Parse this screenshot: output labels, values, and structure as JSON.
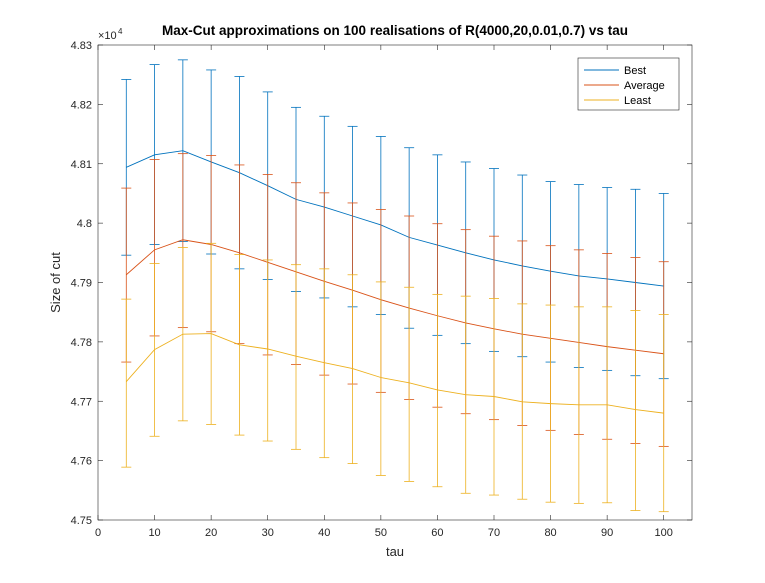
{
  "chart_data": {
    "type": "line",
    "title": "Max-Cut approximations on 100 realisations of R(4000,20,0.01,0.7) vs tau",
    "xlabel": "tau",
    "ylabel": "Size of cut",
    "xlim": [
      0,
      105
    ],
    "ylim": [
      47500,
      48300
    ],
    "y_exponent_label": "×10",
    "y_exponent_power": "4",
    "x_ticks": [
      0,
      10,
      20,
      30,
      40,
      50,
      60,
      70,
      80,
      90,
      100
    ],
    "x_tick_labels": [
      "0",
      "10",
      "20",
      "30",
      "40",
      "50",
      "60",
      "70",
      "80",
      "90",
      "100"
    ],
    "y_ticks": [
      47500,
      47600,
      47700,
      47800,
      47900,
      48000,
      48100,
      48200,
      48300
    ],
    "y_tick_labels": [
      "4.75",
      "4.76",
      "4.77",
      "4.78",
      "4.79",
      "4.8",
      "4.81",
      "4.82",
      "4.83"
    ],
    "legend_position": "top-right",
    "x": [
      5,
      10,
      15,
      20,
      25,
      30,
      35,
      40,
      45,
      50,
      55,
      60,
      65,
      70,
      75,
      80,
      85,
      90,
      95,
      100
    ],
    "series": [
      {
        "name": "Best",
        "color": "#0072BD",
        "values": [
          48094,
          48115,
          48122,
          48103,
          48085,
          48063,
          48040,
          48027,
          48012,
          47997,
          47976,
          47963,
          47950,
          47938,
          47928,
          47919,
          47911,
          47906,
          47900,
          47894
        ],
        "upper": [
          48242,
          48267,
          48275,
          48258,
          48247,
          48221,
          48195,
          48180,
          48163,
          48146,
          48127,
          48115,
          48103,
          48092,
          48081,
          48070,
          48065,
          48060,
          48057,
          48050
        ],
        "lower": [
          47946,
          47964,
          47969,
          47948,
          47923,
          47905,
          47885,
          47874,
          47859,
          47846,
          47823,
          47811,
          47797,
          47784,
          47775,
          47766,
          47757,
          47752,
          47743,
          47738
        ]
      },
      {
        "name": "Average",
        "color": "#D95319",
        "values": [
          47913,
          47955,
          47972,
          47964,
          47950,
          47934,
          47918,
          47902,
          47887,
          47871,
          47857,
          47844,
          47832,
          47822,
          47813,
          47806,
          47799,
          47792,
          47786,
          47780
        ],
        "upper": [
          48059,
          48107,
          48117,
          48114,
          48098,
          48082,
          48068,
          48051,
          48034,
          48023,
          48012,
          47999,
          47989,
          47978,
          47970,
          47962,
          47955,
          47949,
          47942,
          47935
        ],
        "lower": [
          47766,
          47810,
          47824,
          47817,
          47797,
          47778,
          47762,
          47744,
          47729,
          47715,
          47703,
          47690,
          47679,
          47669,
          47659,
          47651,
          47644,
          47636,
          47629,
          47624
        ]
      },
      {
        "name": "Least",
        "color": "#EDB120",
        "values": [
          47733,
          47787,
          47813,
          47814,
          47795,
          47788,
          47776,
          47765,
          47755,
          47740,
          47731,
          47719,
          47711,
          47708,
          47699,
          47696,
          47694,
          47694,
          47686,
          47680
        ],
        "upper": [
          47872,
          47932,
          47959,
          47966,
          47947,
          47938,
          47930,
          47923,
          47913,
          47901,
          47892,
          47880,
          47877,
          47873,
          47864,
          47862,
          47859,
          47859,
          47853,
          47846
        ],
        "lower": [
          47589,
          47641,
          47667,
          47661,
          47643,
          47633,
          47619,
          47605,
          47595,
          47575,
          47565,
          47556,
          47545,
          47542,
          47535,
          47530,
          47528,
          47529,
          47516,
          47514
        ]
      }
    ]
  }
}
